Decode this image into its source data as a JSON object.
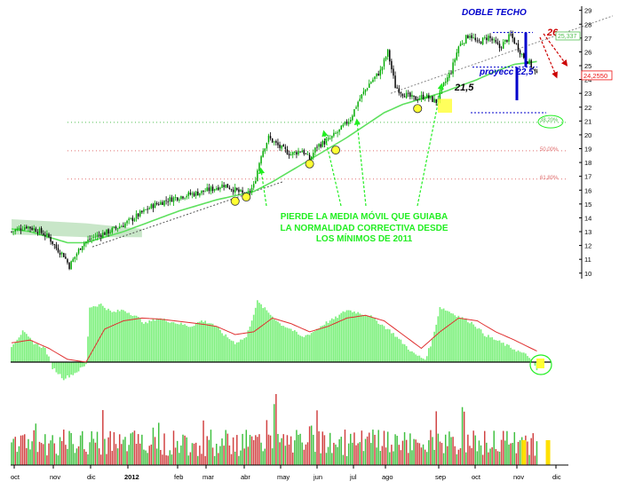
{
  "chart_data": [
    {
      "type": "candlestick",
      "panel": "price",
      "y_axis_side": "right",
      "ylim": [
        9.6,
        29.3
      ],
      "yticks": [
        "10",
        "11",
        "12",
        "13",
        "14",
        "15",
        "16",
        "17",
        "18",
        "19",
        "20",
        "21",
        "22",
        "23",
        "24",
        "25",
        "26",
        "27",
        "28",
        "29"
      ],
      "last_price_label": "24,2550",
      "last_price_box": "25,337",
      "grid": false,
      "colors": {
        "up": "#00aa00",
        "down": "#000000",
        "moving_average": "#5ee05e",
        "fib_green": "#50c050",
        "fib_red": "#e07070",
        "annotation_green": "#22ee22",
        "annotation_blue": "#0000cc",
        "annotation_red": "#cc0000"
      },
      "x_months": [
        "oct",
        "nov",
        "dic",
        "2012",
        "feb",
        "mar",
        "abr",
        "may",
        "jun",
        "jul",
        "ago",
        "sep",
        "oct",
        "nov",
        "dic"
      ],
      "price_path": [
        [
          0,
          13.0
        ],
        [
          8,
          13.4
        ],
        [
          14,
          13.1
        ],
        [
          20,
          12.6
        ],
        [
          24,
          11.8
        ],
        [
          28,
          11.3
        ],
        [
          31,
          10.5
        ],
        [
          34,
          11.2
        ],
        [
          38,
          12.1
        ],
        [
          44,
          12.6
        ],
        [
          52,
          13.0
        ],
        [
          60,
          13.5
        ],
        [
          68,
          14.2
        ],
        [
          76,
          14.9
        ],
        [
          84,
          15.3
        ],
        [
          92,
          15.6
        ],
        [
          100,
          15.8
        ],
        [
          108,
          16.1
        ],
        [
          114,
          16.4
        ],
        [
          120,
          16.0
        ],
        [
          126,
          15.6
        ],
        [
          130,
          16.3
        ],
        [
          134,
          18.6
        ],
        [
          138,
          19.8
        ],
        [
          144,
          19.1
        ],
        [
          150,
          18.6
        ],
        [
          156,
          18.9
        ],
        [
          160,
          18.2
        ],
        [
          164,
          19.2
        ],
        [
          170,
          19.6
        ],
        [
          176,
          20.3
        ],
        [
          182,
          21.2
        ],
        [
          186,
          22.4
        ],
        [
          192,
          23.7
        ],
        [
          198,
          24.6
        ],
        [
          202,
          26.0
        ],
        [
          206,
          23.5
        ],
        [
          210,
          23.0
        ],
        [
          216,
          22.6
        ],
        [
          222,
          22.8
        ],
        [
          228,
          22.4
        ],
        [
          232,
          23.6
        ],
        [
          236,
          24.6
        ],
        [
          240,
          26.4
        ],
        [
          246,
          27.3
        ],
        [
          250,
          26.6
        ],
        [
          256,
          27.1
        ],
        [
          262,
          26.3
        ],
        [
          268,
          27.2
        ],
        [
          274,
          25.8
        ],
        [
          278,
          25.2
        ],
        [
          282,
          24.3
        ]
      ],
      "moving_average_path": [
        [
          0,
          13.2
        ],
        [
          10,
          13.0
        ],
        [
          20,
          12.6
        ],
        [
          30,
          12.2
        ],
        [
          40,
          12.2
        ],
        [
          50,
          12.6
        ],
        [
          60,
          13.0
        ],
        [
          70,
          13.5
        ],
        [
          80,
          14.0
        ],
        [
          90,
          14.5
        ],
        [
          100,
          14.9
        ],
        [
          110,
          15.3
        ],
        [
          120,
          15.6
        ],
        [
          130,
          15.9
        ],
        [
          140,
          16.6
        ],
        [
          150,
          17.4
        ],
        [
          160,
          18.2
        ],
        [
          170,
          19.0
        ],
        [
          180,
          19.8
        ],
        [
          190,
          20.7
        ],
        [
          200,
          21.6
        ],
        [
          210,
          22.2
        ],
        [
          220,
          22.6
        ],
        [
          230,
          23.0
        ],
        [
          240,
          23.5
        ],
        [
          250,
          24.0
        ],
        [
          260,
          24.6
        ],
        [
          270,
          25.1
        ],
        [
          282,
          25.3
        ]
      ],
      "fibonacci_levels": [
        {
          "label": "38,20%",
          "value": 20.9
        },
        {
          "label": "50,00%",
          "value": 18.85
        },
        {
          "label": "61,80%",
          "value": 16.8
        }
      ],
      "annotations": {
        "double_top": "DOBLE TECHO",
        "projection": "proyecc 22,5",
        "neckline_value": "21,5",
        "target_value": "26",
        "main_text": [
          "PIERDE LA MEDIA MÓVIL QUE GUIABA",
          "LA NORMALIDAD CORRECTIVA DESDE",
          "LOS MÍNIMOS DE 2011"
        ]
      },
      "touch_points": [
        {
          "x": 120,
          "y": 15.2
        },
        {
          "x": 126,
          "y": 15.5
        },
        {
          "x": 160,
          "y": 17.9
        },
        {
          "x": 174,
          "y": 18.9
        },
        {
          "x": 218,
          "y": 21.9
        }
      ]
    },
    {
      "type": "bar",
      "panel": "oscillator",
      "bar_color": "#7cf07c",
      "signal_color": "#e03030",
      "baseline_color": "#000000",
      "oscillator_path": [
        [
          0,
          0.3
        ],
        [
          6,
          0.55
        ],
        [
          12,
          0.35
        ],
        [
          18,
          0.25
        ],
        [
          22,
          -0.1
        ],
        [
          28,
          -0.3
        ],
        [
          34,
          -0.2
        ],
        [
          40,
          -0.05
        ],
        [
          42,
          1.0
        ],
        [
          48,
          1.05
        ],
        [
          54,
          0.9
        ],
        [
          60,
          0.95
        ],
        [
          66,
          0.85
        ],
        [
          72,
          0.7
        ],
        [
          78,
          0.8
        ],
        [
          84,
          0.75
        ],
        [
          90,
          0.7
        ],
        [
          96,
          0.65
        ],
        [
          102,
          0.75
        ],
        [
          108,
          0.7
        ],
        [
          114,
          0.5
        ],
        [
          120,
          0.35
        ],
        [
          126,
          0.45
        ],
        [
          132,
          1.1
        ],
        [
          138,
          0.9
        ],
        [
          144,
          0.7
        ],
        [
          150,
          0.6
        ],
        [
          156,
          0.45
        ],
        [
          162,
          0.55
        ],
        [
          168,
          0.7
        ],
        [
          174,
          0.8
        ],
        [
          180,
          0.95
        ],
        [
          186,
          0.9
        ],
        [
          192,
          0.85
        ],
        [
          198,
          0.7
        ],
        [
          204,
          0.55
        ],
        [
          210,
          0.35
        ],
        [
          216,
          0.15
        ],
        [
          222,
          0.05
        ],
        [
          226,
          0.4
        ],
        [
          230,
          1.0
        ],
        [
          236,
          0.9
        ],
        [
          242,
          0.8
        ],
        [
          248,
          0.7
        ],
        [
          254,
          0.5
        ],
        [
          260,
          0.4
        ],
        [
          266,
          0.3
        ],
        [
          272,
          0.2
        ],
        [
          278,
          0.1
        ],
        [
          282,
          -0.15
        ]
      ],
      "signal_path": [
        [
          0,
          0.35
        ],
        [
          10,
          0.4
        ],
        [
          20,
          0.25
        ],
        [
          30,
          0.05
        ],
        [
          40,
          0.0
        ],
        [
          50,
          0.6
        ],
        [
          60,
          0.75
        ],
        [
          70,
          0.8
        ],
        [
          80,
          0.78
        ],
        [
          90,
          0.74
        ],
        [
          100,
          0.7
        ],
        [
          110,
          0.65
        ],
        [
          120,
          0.5
        ],
        [
          130,
          0.55
        ],
        [
          140,
          0.8
        ],
        [
          150,
          0.7
        ],
        [
          160,
          0.55
        ],
        [
          170,
          0.65
        ],
        [
          180,
          0.8
        ],
        [
          190,
          0.85
        ],
        [
          200,
          0.75
        ],
        [
          210,
          0.5
        ],
        [
          220,
          0.25
        ],
        [
          230,
          0.55
        ],
        [
          240,
          0.8
        ],
        [
          250,
          0.75
        ],
        [
          260,
          0.55
        ],
        [
          270,
          0.4
        ],
        [
          282,
          0.2
        ]
      ]
    },
    {
      "type": "bar",
      "panel": "volume",
      "up_color": "#40c040",
      "down_color": "#d04040",
      "highlight_color": "#ffe000",
      "highlight_x": [
        275,
        288
      ]
    }
  ]
}
